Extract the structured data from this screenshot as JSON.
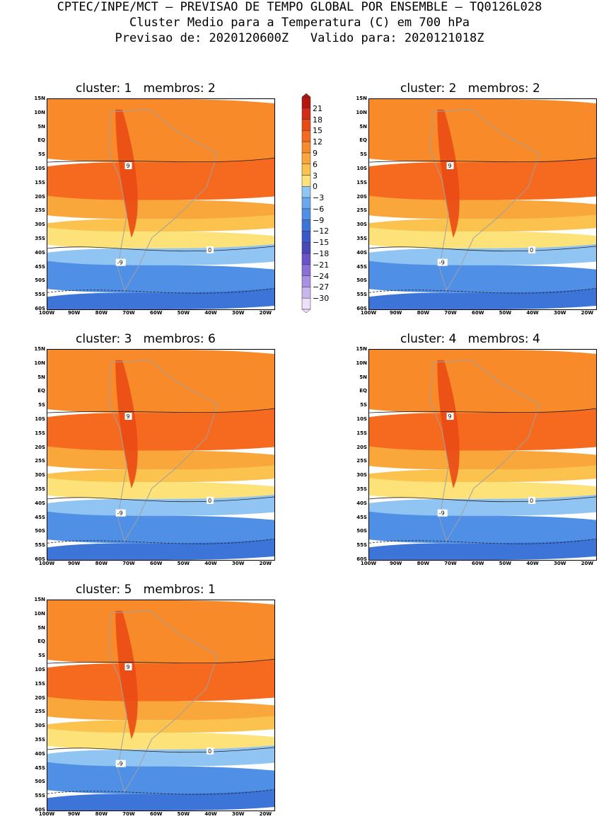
{
  "header": {
    "line1": "CPTEC/INPE/MCT – PREVISAO DE TEMPO GLOBAL POR ENSEMBLE – TQ0126L028",
    "line2": "Cluster Medio para a Temperatura (C) em 700 hPa",
    "line3": "Previsao de: 2020120600Z   Valido para: 2020121018Z"
  },
  "lat_labels": [
    "15N",
    "10N",
    "5N",
    "EQ",
    "5S",
    "10S",
    "15S",
    "20S",
    "25S",
    "30S",
    "35S",
    "40S",
    "45S",
    "50S",
    "55S",
    "60S"
  ],
  "lon_labels": [
    "100W",
    "90W",
    "80W",
    "70W",
    "60W",
    "50W",
    "40W",
    "30W",
    "20W"
  ],
  "panels": [
    {
      "title": "cluster: 1   membros: 2"
    },
    {
      "title": "cluster: 2   membros: 2"
    },
    {
      "title": "cluster: 3   membros: 6"
    },
    {
      "title": "cluster: 4   membros: 4"
    },
    {
      "title": "cluster: 5   membros: 1"
    }
  ],
  "contour_labels": {
    "warm": "9",
    "zero": "0",
    "cold": "-9"
  },
  "colorbar": {
    "levels": [
      "21",
      "18",
      "15",
      "12",
      "9",
      "6",
      "3",
      "0",
      "−3",
      "−6",
      "−9",
      "−12",
      "−15",
      "−18",
      "−21",
      "−24",
      "−27",
      "−30"
    ],
    "colors": [
      "#b3150f",
      "#d42a1a",
      "#ea4a14",
      "#f56a1e",
      "#f88a2a",
      "#f9a63a",
      "#fbc24e",
      "#fde27a",
      "#90c4f2",
      "#6aa8ee",
      "#4f8fe6",
      "#3c74d8",
      "#3a58c8",
      "#4a48b8",
      "#6a54c8",
      "#8a70d6",
      "#aa90e2",
      "#c9b4ee",
      "#ece0fa"
    ]
  }
}
